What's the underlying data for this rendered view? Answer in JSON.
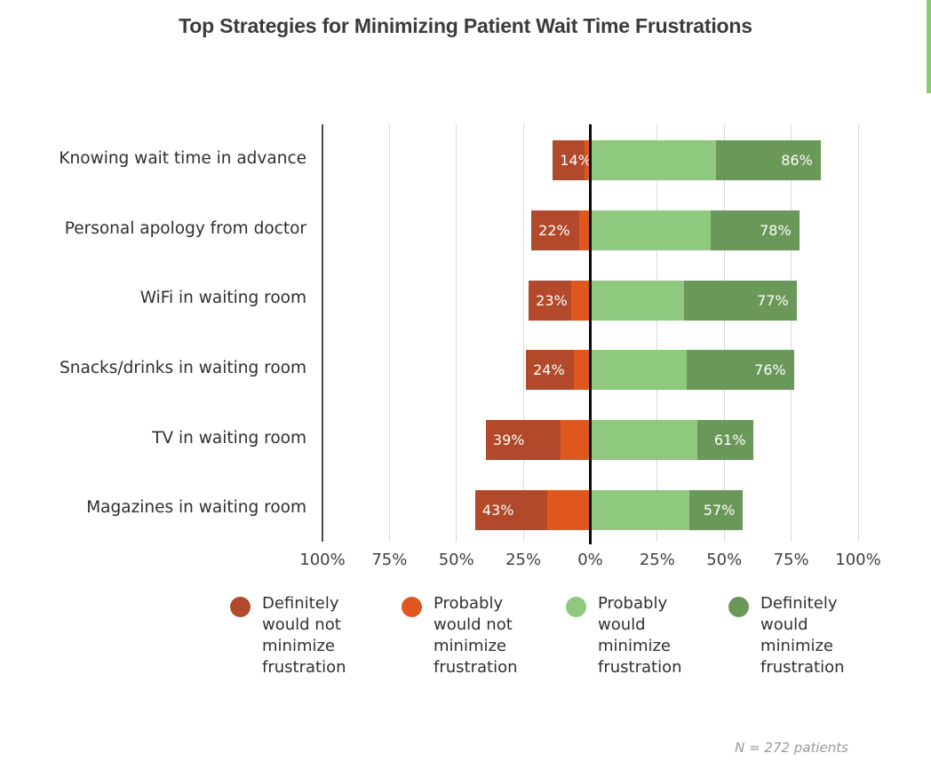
{
  "accent": {
    "scrollbar_color": "#8cc873"
  },
  "chart_data": {
    "type": "bar",
    "subtype": "diverging_stacked_horizontal",
    "title": "Top Strategies for Minimizing Patient Wait Time Frustrations",
    "categories": [
      "Knowing wait time in advance",
      "Personal apology from doctor",
      "WiFi in waiting room",
      "Snacks/drinks in waiting room",
      "TV in waiting room",
      "Magazines in waiting room"
    ],
    "series": [
      {
        "name": "Definitely would not minimize frustration",
        "color": "#b1492a",
        "side": "negative",
        "values": [
          12,
          18,
          16,
          18,
          28,
          27
        ]
      },
      {
        "name": "Probably would not minimize frustration",
        "color": "#e0571e",
        "side": "negative",
        "values": [
          2,
          4,
          7,
          6,
          11,
          16
        ]
      },
      {
        "name": "Probably would minimize frustration",
        "color": "#8ec97d",
        "side": "positive",
        "values": [
          47,
          45,
          35,
          36,
          40,
          37
        ]
      },
      {
        "name": "Definitely would minimize frustration",
        "color": "#6a9859",
        "side": "positive",
        "values": [
          39,
          33,
          42,
          40,
          21,
          20
        ]
      }
    ],
    "bar_totals": {
      "negative": [
        "14%",
        "22%",
        "23%",
        "24%",
        "39%",
        "43%"
      ],
      "positive": [
        "86%",
        "78%",
        "77%",
        "76%",
        "61%",
        "57%"
      ]
    },
    "x_tick_labels": [
      "100%",
      "75%",
      "50%",
      "25%",
      "0%",
      "25%",
      "50%",
      "75%",
      "100%"
    ],
    "x_tick_values": [
      -100,
      -75,
      -50,
      -25,
      0,
      25,
      50,
      75,
      100
    ],
    "xlim": [
      -100,
      100
    ],
    "grid": true,
    "legend_position": "bottom",
    "footnote": "N = 272 patients"
  },
  "legend": {
    "items": [
      {
        "label": "Definitely would not minimize frustration",
        "color": "#b1492a"
      },
      {
        "label": "Probably would not minimize frustration",
        "color": "#e0571e"
      },
      {
        "label": "Probably would minimize frustration",
        "color": "#8ec97d"
      },
      {
        "label": "Definitely would minimize frustration",
        "color": "#6a9859"
      }
    ]
  }
}
